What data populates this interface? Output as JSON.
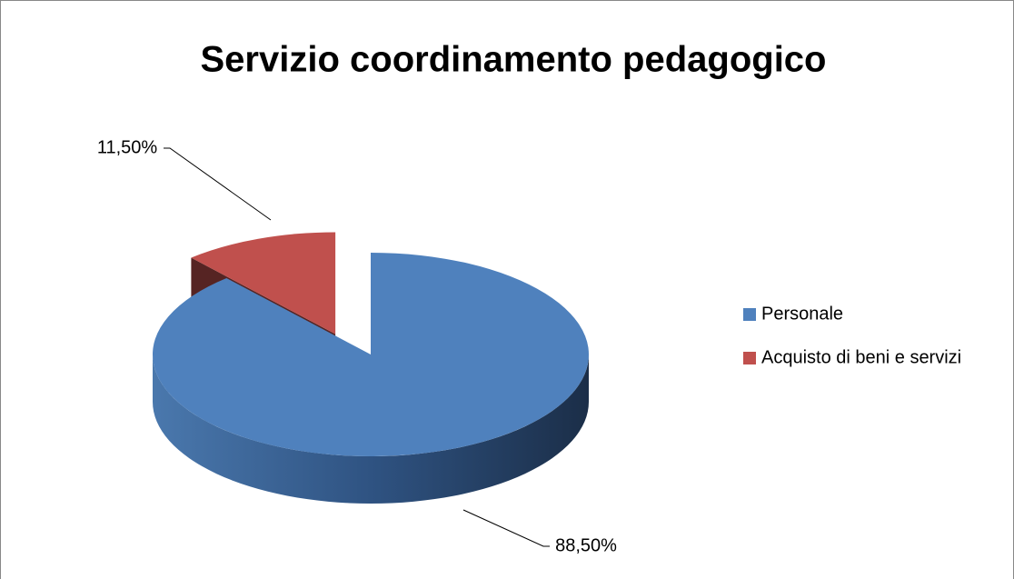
{
  "chart_data": {
    "type": "pie",
    "title": "Servizio coordinamento pedagogico",
    "categories": [
      "Personale",
      "Acquisto di beni e servizi"
    ],
    "values": [
      88.5,
      11.5
    ],
    "value_labels": [
      "88,50%",
      "11,50%"
    ],
    "colors": [
      "#4f81bd",
      "#c0504d"
    ],
    "legend": "right"
  }
}
